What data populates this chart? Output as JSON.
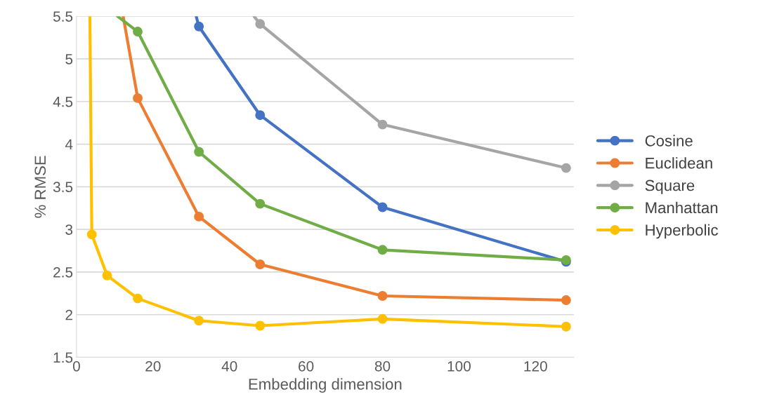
{
  "chart_data": {
    "type": "line",
    "xlabel": "Embedding dimension",
    "ylabel": "% RMSE",
    "xlim": [
      0,
      130
    ],
    "xticks": [
      0,
      20,
      40,
      60,
      80,
      100,
      120
    ],
    "ylim": [
      1.5,
      5.5
    ],
    "yticks": [
      1.5,
      2,
      2.5,
      3,
      3.5,
      4,
      4.5,
      5,
      5.5
    ],
    "grid": "y",
    "legend": "right",
    "marker": "circle",
    "line_style": "solid",
    "series": [
      {
        "name": "Cosine",
        "color": "#4472c4",
        "x": [
          31.3,
          32,
          48,
          80,
          128
        ],
        "values": [
          5.5,
          5.38,
          4.34,
          3.26,
          2.62
        ]
      },
      {
        "name": "Euclidean",
        "color": "#ed7d31",
        "x": [
          12.2,
          16,
          32,
          48,
          80,
          128
        ],
        "values": [
          5.5,
          4.54,
          3.15,
          2.59,
          2.22,
          2.17
        ]
      },
      {
        "name": "Square",
        "color": "#a5a5a5",
        "x": [
          46.4,
          48,
          80,
          128
        ],
        "values": [
          5.5,
          5.41,
          4.23,
          3.72
        ]
      },
      {
        "name": "Manhattan",
        "color": "#70ad47",
        "x": [
          10.7,
          16,
          32,
          48,
          80,
          128
        ],
        "values": [
          5.5,
          5.32,
          3.91,
          3.3,
          2.76,
          2.64
        ]
      },
      {
        "name": "Hyperbolic",
        "color": "#ffc000",
        "x": [
          3.5,
          4,
          8,
          16,
          32,
          48,
          80,
          128
        ],
        "values": [
          5.5,
          2.94,
          2.46,
          2.19,
          1.93,
          1.87,
          1.95,
          1.86
        ]
      }
    ]
  }
}
